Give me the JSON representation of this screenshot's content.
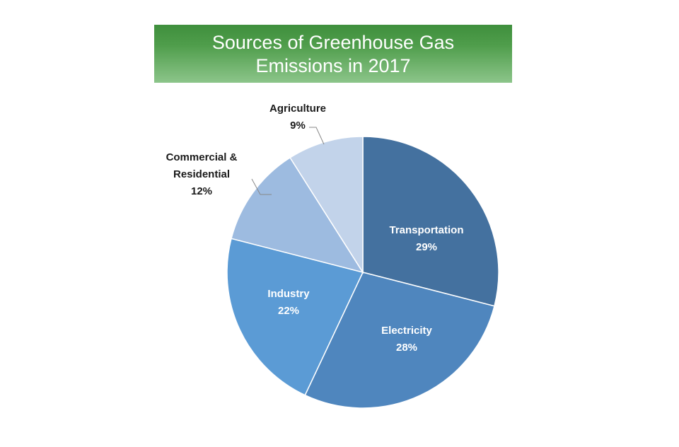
{
  "chart_data": {
    "type": "pie",
    "title_lines": [
      "Sources of Greenhouse Gas",
      "Emissions in 2017"
    ],
    "slices": [
      {
        "label_lines": [
          "Transportation"
        ],
        "value": 29,
        "value_label": "29%",
        "color": "#44719f",
        "label_color": "#ffffff",
        "label_inside": true
      },
      {
        "label_lines": [
          "Electricity"
        ],
        "value": 28,
        "value_label": "28%",
        "color": "#4f86be",
        "label_color": "#ffffff",
        "label_inside": true
      },
      {
        "label_lines": [
          "Industry"
        ],
        "value": 22,
        "value_label": "22%",
        "color": "#5b9bd5",
        "label_color": "#ffffff",
        "label_inside": true
      },
      {
        "label_lines": [
          "Commercial &",
          "Residential"
        ],
        "value": 12,
        "value_label": "12%",
        "color": "#9dbbe0",
        "label_color": "#1a1a1a",
        "label_inside": false
      },
      {
        "label_lines": [
          "Agriculture"
        ],
        "value": 9,
        "value_label": "9%",
        "color": "#c2d3ea",
        "label_color": "#1a1a1a",
        "label_inside": false
      }
    ],
    "start_angle_deg": 0,
    "direction": "clockwise",
    "legend": "none"
  },
  "colors": {
    "title_banner_top": "#3f8f3d",
    "title_banner_bottom": "#8cc58a",
    "title_text": "#ffffff",
    "slice_border": "#ffffff",
    "leader_line": "#888888"
  }
}
